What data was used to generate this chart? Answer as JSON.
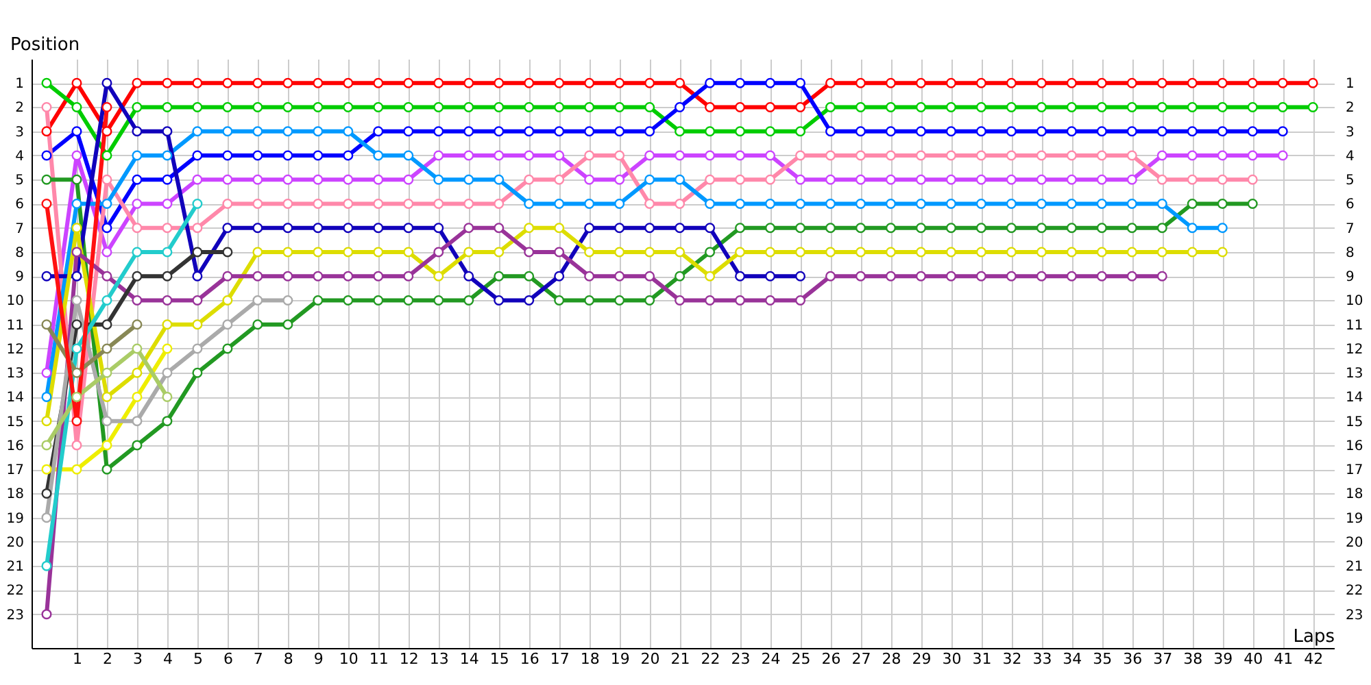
{
  "chart_data": {
    "type": "line",
    "xlabel": "Laps",
    "ylabel": "Position",
    "x": [
      0,
      1,
      2,
      3,
      4,
      5,
      6,
      7,
      8,
      9,
      10,
      11,
      12,
      13,
      14,
      15,
      16,
      17,
      18,
      19,
      20,
      21,
      22,
      23,
      24,
      25,
      26,
      27,
      28,
      29,
      30,
      31,
      32,
      33,
      34,
      35,
      36,
      37,
      38,
      39,
      40,
      41,
      42
    ],
    "xlim": [
      -0.5,
      42.7
    ],
    "xticks": [
      1,
      2,
      3,
      4,
      5,
      6,
      7,
      8,
      9,
      10,
      11,
      12,
      13,
      14,
      15,
      16,
      17,
      18,
      19,
      20,
      21,
      22,
      23,
      24,
      25,
      26,
      27,
      28,
      29,
      30,
      31,
      32,
      33,
      34,
      35,
      36,
      37,
      38,
      39,
      40,
      41,
      42
    ],
    "ylim": [
      24.4,
      0
    ],
    "yticks": [
      1,
      2,
      3,
      4,
      5,
      6,
      7,
      8,
      9,
      10,
      11,
      12,
      13,
      14,
      15,
      16,
      17,
      18,
      19,
      20,
      21,
      22,
      23
    ],
    "y2lim": [
      24.4,
      0
    ],
    "y2ticks": [
      1,
      2,
      3,
      4,
      5,
      6,
      7,
      8,
      9,
      10,
      11,
      12,
      13,
      14,
      15,
      16,
      17,
      18,
      19,
      20,
      21,
      22,
      23
    ],
    "grid": true,
    "marker": "circle",
    "line_style": "solid",
    "series": [
      {
        "color": "#ff0000",
        "values": [
          3,
          1,
          3,
          1,
          1,
          1,
          1,
          1,
          1,
          1,
          1,
          1,
          1,
          1,
          1,
          1,
          1,
          1,
          1,
          1,
          1,
          1,
          2,
          2,
          2,
          2,
          1,
          1,
          1,
          1,
          1,
          1,
          1,
          1,
          1,
          1,
          1,
          1,
          1,
          1,
          1,
          1,
          1
        ]
      },
      {
        "color": "#00cc00",
        "values": [
          1,
          2,
          4,
          2,
          2,
          2,
          2,
          2,
          2,
          2,
          2,
          2,
          2,
          2,
          2,
          2,
          2,
          2,
          2,
          2,
          2,
          3,
          3,
          3,
          3,
          3,
          2,
          2,
          2,
          2,
          2,
          2,
          2,
          2,
          2,
          2,
          2,
          2,
          2,
          2,
          2,
          2,
          2
        ]
      },
      {
        "color": "#0000ff",
        "values": [
          4,
          3,
          7,
          5,
          5,
          4,
          4,
          4,
          4,
          4,
          4,
          3,
          3,
          3,
          3,
          3,
          3,
          3,
          3,
          3,
          3,
          2,
          1,
          1,
          1,
          1,
          3,
          3,
          3,
          3,
          3,
          3,
          3,
          3,
          3,
          3,
          3,
          3,
          3,
          3,
          3,
          3,
          null
        ]
      },
      {
        "color": "#cc44ff",
        "values": [
          13,
          4,
          8,
          6,
          6,
          5,
          5,
          5,
          5,
          5,
          5,
          5,
          5,
          4,
          4,
          4,
          4,
          4,
          5,
          5,
          4,
          4,
          4,
          4,
          4,
          5,
          5,
          5,
          5,
          5,
          5,
          5,
          5,
          5,
          5,
          5,
          5,
          4,
          4,
          4,
          4,
          4,
          null
        ]
      },
      {
        "color": "#ff88aa",
        "values": [
          2,
          16,
          5,
          7,
          7,
          7,
          6,
          6,
          6,
          6,
          6,
          6,
          6,
          6,
          6,
          6,
          5,
          5,
          4,
          4,
          6,
          6,
          5,
          5,
          5,
          4,
          4,
          4,
          4,
          4,
          4,
          4,
          4,
          4,
          4,
          4,
          4,
          5,
          5,
          5,
          5,
          null,
          null
        ]
      },
      {
        "color": "#229922",
        "values": [
          5,
          5,
          17,
          16,
          15,
          13,
          12,
          11,
          11,
          10,
          10,
          10,
          10,
          10,
          10,
          9,
          9,
          10,
          10,
          10,
          10,
          9,
          8,
          7,
          7,
          7,
          7,
          7,
          7,
          7,
          7,
          7,
          7,
          7,
          7,
          7,
          7,
          7,
          6,
          6,
          6,
          null,
          null
        ]
      },
      {
        "color": "#0099ff",
        "values": [
          14,
          6,
          6,
          4,
          4,
          3,
          3,
          3,
          3,
          3,
          3,
          4,
          4,
          5,
          5,
          5,
          6,
          6,
          6,
          6,
          5,
          5,
          6,
          6,
          6,
          6,
          6,
          6,
          6,
          6,
          6,
          6,
          6,
          6,
          6,
          6,
          6,
          6,
          7,
          7,
          null,
          null,
          null
        ]
      },
      {
        "color": "#1100bb",
        "values": [
          9,
          9,
          1,
          3,
          3,
          9,
          7,
          7,
          7,
          7,
          7,
          7,
          7,
          7,
          9,
          10,
          10,
          9,
          7,
          7,
          7,
          7,
          7,
          9,
          9,
          9,
          null,
          null,
          null,
          null,
          null,
          null,
          null,
          null,
          null,
          null,
          null,
          null,
          null,
          null,
          null,
          null,
          null
        ]
      },
      {
        "color": "#dddd00",
        "values": [
          15,
          7,
          14,
          13,
          11,
          11,
          10,
          8,
          8,
          8,
          8,
          8,
          8,
          9,
          8,
          8,
          7,
          7,
          8,
          8,
          8,
          8,
          9,
          8,
          8,
          8,
          8,
          8,
          8,
          8,
          8,
          8,
          8,
          8,
          8,
          8,
          8,
          8,
          8,
          8,
          null,
          null,
          null
        ]
      },
      {
        "color": "#eeee00",
        "values": [
          17,
          17,
          16,
          14,
          12,
          null,
          null,
          null,
          null,
          null,
          null,
          null,
          null,
          null,
          null,
          null,
          null,
          null,
          null,
          null,
          null,
          null,
          null,
          null,
          null,
          null,
          null,
          null,
          null,
          null,
          null,
          null,
          null,
          null,
          null,
          null,
          null,
          null,
          null,
          null,
          null,
          null,
          null
        ]
      },
      {
        "color": "#993399",
        "values": [
          23,
          8,
          9,
          10,
          10,
          10,
          9,
          9,
          9,
          9,
          9,
          9,
          9,
          8,
          7,
          7,
          8,
          8,
          9,
          9,
          9,
          10,
          10,
          10,
          10,
          10,
          9,
          9,
          9,
          9,
          9,
          9,
          9,
          9,
          9,
          9,
          9,
          9,
          null,
          null,
          null,
          null,
          null
        ]
      },
      {
        "color": "#333333",
        "values": [
          18,
          11,
          11,
          9,
          9,
          8,
          8,
          null,
          null,
          null,
          null,
          null,
          null,
          null,
          null,
          null,
          null,
          null,
          null,
          null,
          null,
          null,
          null,
          null,
          null,
          null,
          null,
          null,
          null,
          null,
          null,
          null,
          null,
          null,
          null,
          null,
          null,
          null,
          null,
          null,
          null,
          null,
          null
        ]
      },
      {
        "color": "#aaaaaa",
        "values": [
          19,
          10,
          15,
          15,
          13,
          12,
          11,
          10,
          10,
          null,
          null,
          null,
          null,
          null,
          null,
          null,
          null,
          null,
          null,
          null,
          null,
          null,
          null,
          null,
          null,
          null,
          null,
          null,
          null,
          null,
          null,
          null,
          null,
          null,
          null,
          null,
          null,
          null,
          null,
          null,
          null,
          null,
          null
        ]
      },
      {
        "color": "#22cccc",
        "values": [
          21,
          12,
          10,
          8,
          8,
          6,
          null,
          null,
          null,
          null,
          null,
          null,
          null,
          null,
          null,
          null,
          null,
          null,
          null,
          null,
          null,
          null,
          null,
          null,
          null,
          null,
          null,
          null,
          null,
          null,
          null,
          null,
          null,
          null,
          null,
          null,
          null,
          null,
          null,
          null,
          null,
          null,
          null
        ]
      },
      {
        "color": "#888855",
        "values": [
          11,
          13,
          12,
          11,
          null,
          null,
          null,
          null,
          null,
          null,
          null,
          null,
          null,
          null,
          null,
          null,
          null,
          null,
          null,
          null,
          null,
          null,
          null,
          null,
          null,
          null,
          null,
          null,
          null,
          null,
          null,
          null,
          null,
          null,
          null,
          null,
          null,
          null,
          null,
          null,
          null,
          null,
          null
        ]
      },
      {
        "color": "#aacc66",
        "values": [
          16,
          14,
          13,
          12,
          14,
          null,
          null,
          null,
          null,
          null,
          null,
          null,
          null,
          null,
          null,
          null,
          null,
          null,
          null,
          null,
          null,
          null,
          null,
          null,
          null,
          null,
          null,
          null,
          null,
          null,
          null,
          null,
          null,
          null,
          null,
          null,
          null,
          null,
          null,
          null,
          null,
          null,
          null
        ]
      },
      {
        "color": "#ff1111",
        "values": [
          6,
          15,
          2,
          null,
          null,
          null,
          null,
          null,
          null,
          null,
          null,
          null,
          null,
          null,
          null,
          null,
          null,
          null,
          null,
          null,
          null,
          null,
          null,
          null,
          null,
          null,
          null,
          null,
          null,
          null,
          null,
          null,
          null,
          null,
          null,
          null,
          null,
          null,
          null,
          null,
          null,
          null,
          null
        ]
      }
    ]
  }
}
